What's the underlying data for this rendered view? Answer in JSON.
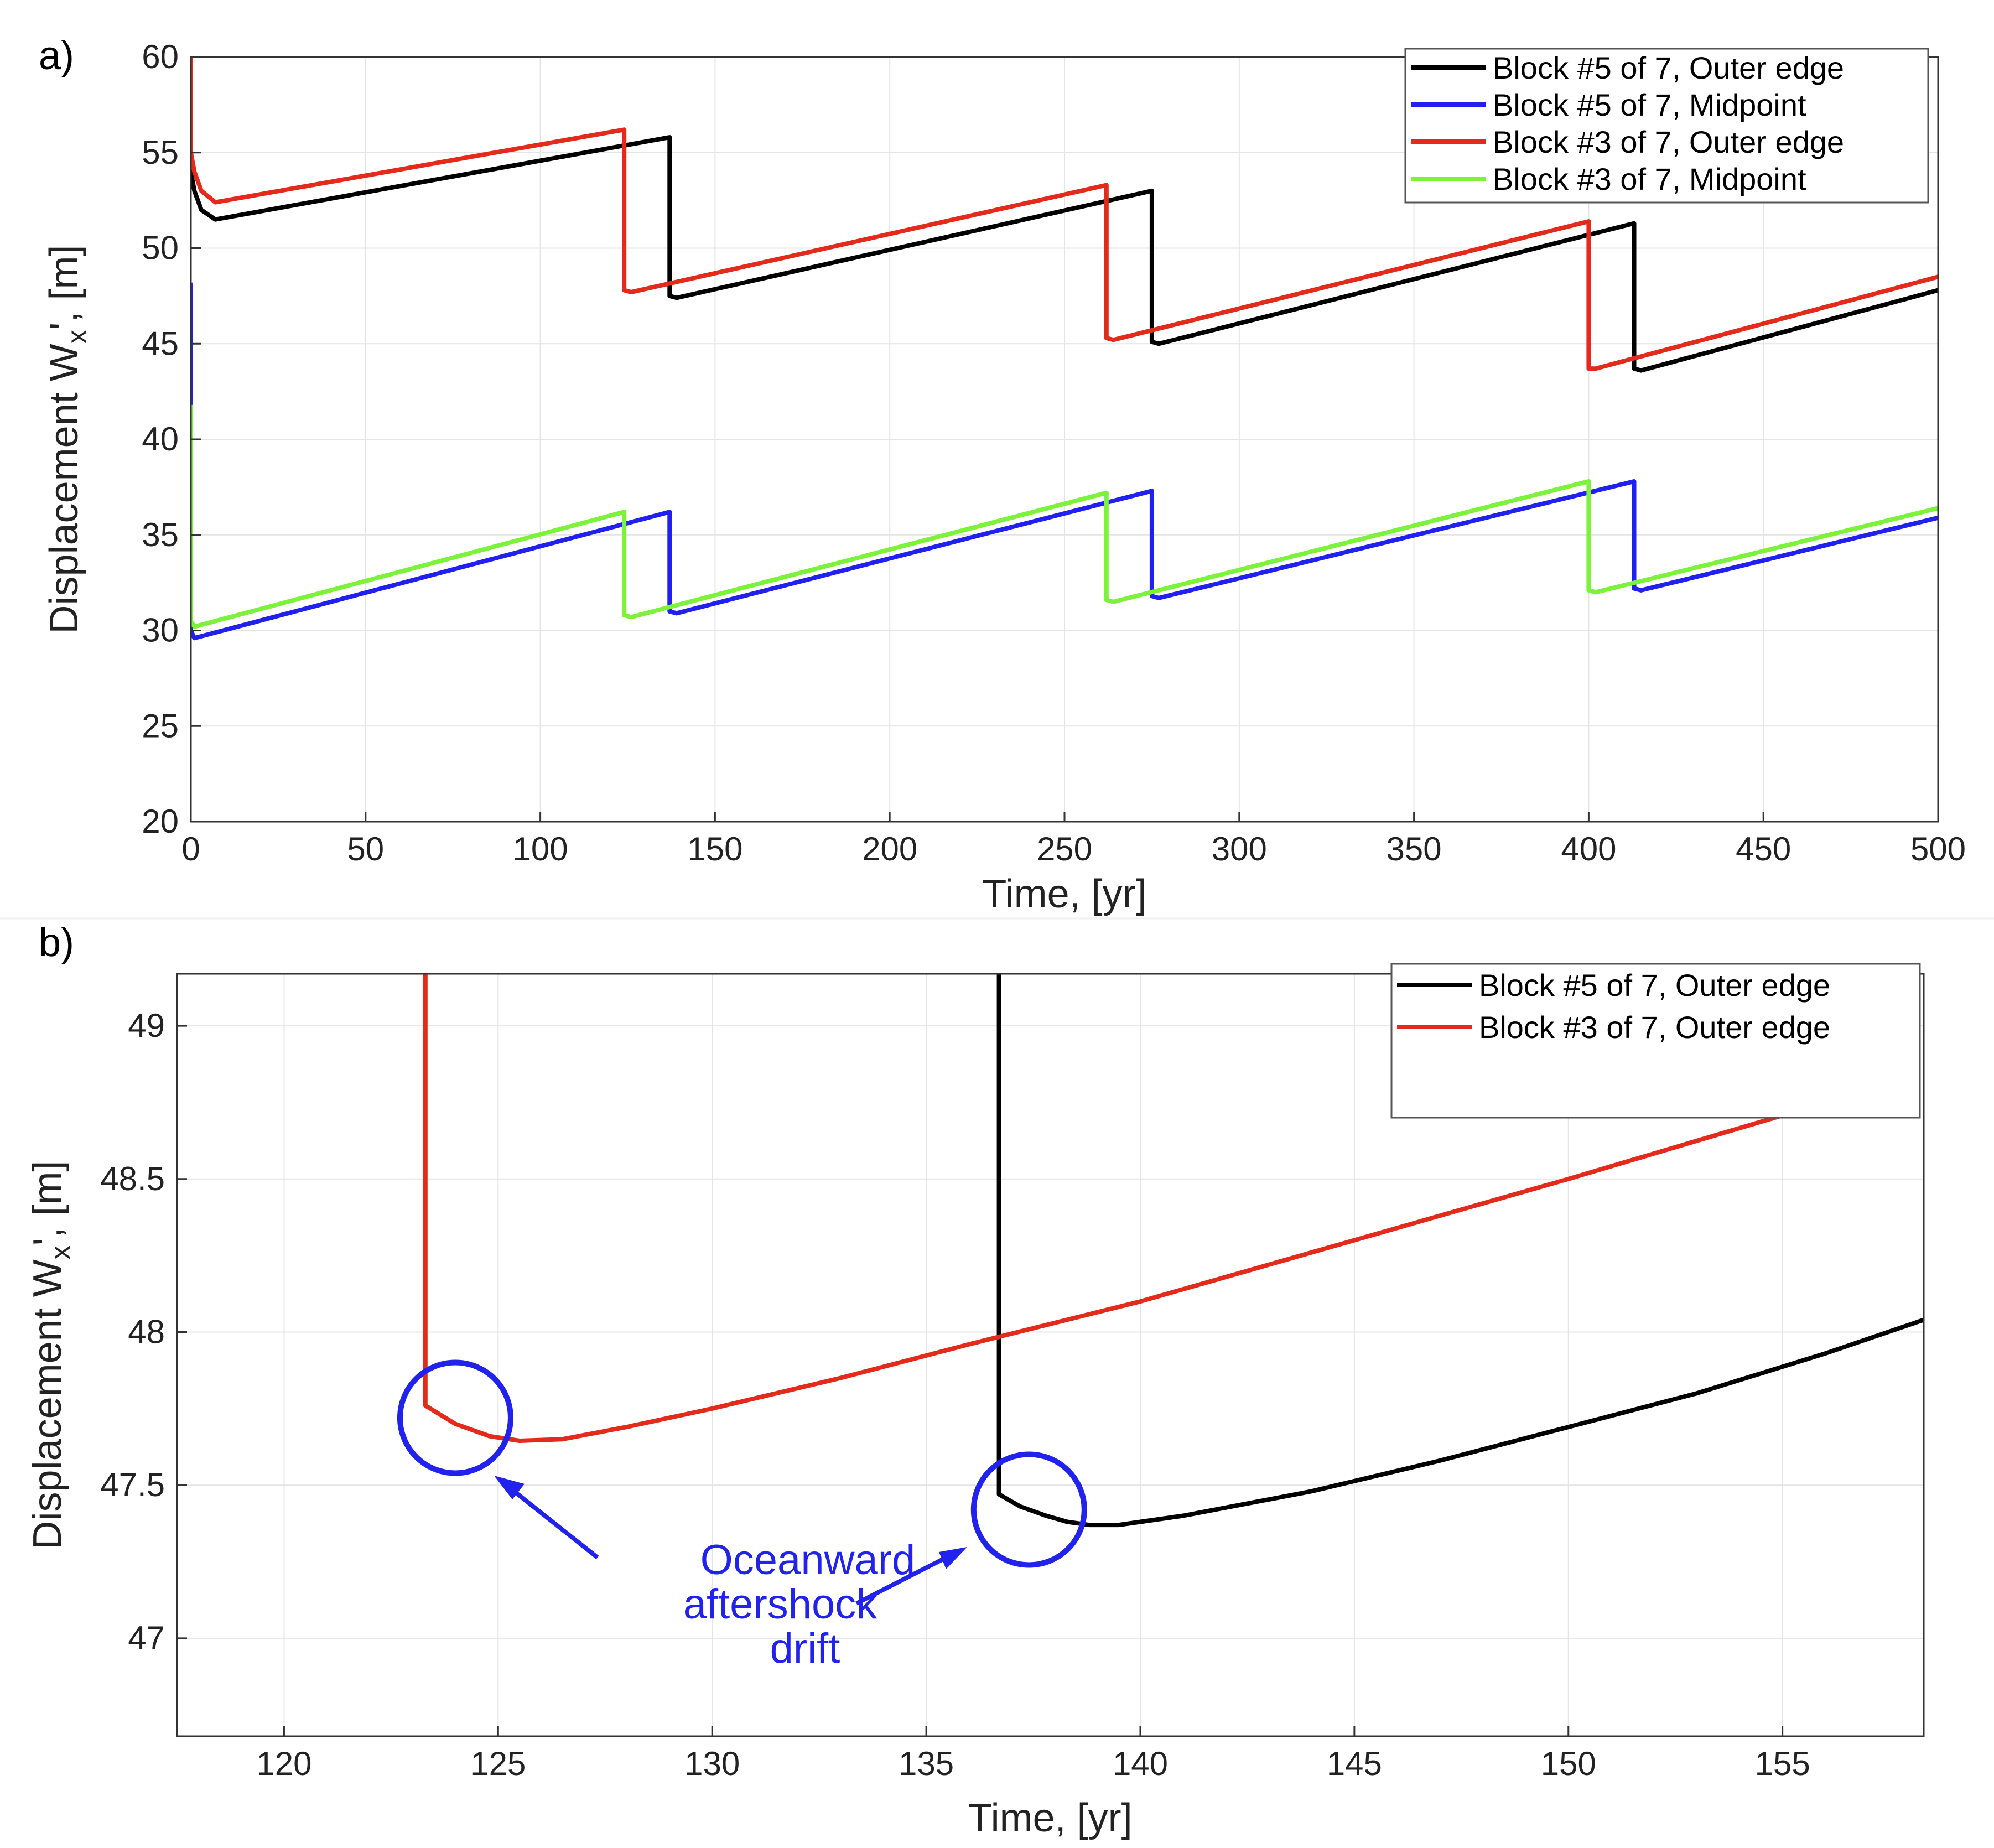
{
  "chart_data": [
    {
      "panel": "a)",
      "type": "line",
      "xlabel": "Time, [yr]",
      "ylabel_main": "Displacement W",
      "ylabel_sub": "x",
      "ylabel_rest": "', [m]",
      "xlim": [
        0,
        500
      ],
      "ylim": [
        20,
        60
      ],
      "xticks": [
        0,
        50,
        100,
        150,
        200,
        250,
        300,
        350,
        400,
        450,
        500
      ],
      "yticks": [
        20,
        25,
        30,
        35,
        40,
        45,
        50,
        55,
        60
      ],
      "legend_position": "top-right",
      "series": [
        {
          "name": "Block #5 of 7, Outer edge",
          "color": "#000000",
          "x": [
            0,
            0,
            1,
            3,
            7,
            137,
            137,
            139,
            275,
            275,
            277,
            413,
            413,
            415,
            500
          ],
          "y": [
            55,
            54,
            53,
            52,
            51.5,
            55.8,
            47.5,
            47.4,
            53,
            45.1,
            45,
            51.3,
            43.7,
            43.6,
            47.8
          ]
        },
        {
          "name": "Block #5 of 7, Midpoint",
          "color": "#2020f0",
          "x": [
            0,
            0,
            1,
            137,
            137,
            139,
            275,
            275,
            277,
            413,
            413,
            415,
            500
          ],
          "y": [
            48.2,
            30,
            29.6,
            36.2,
            31,
            30.9,
            37.3,
            31.8,
            31.7,
            37.8,
            32.2,
            32.1,
            35.9
          ]
        },
        {
          "name": "Block #3 of 7, Outer edge",
          "color": "#e42a1a",
          "x": [
            0,
            0,
            1,
            3,
            7,
            124,
            124,
            126,
            262,
            262,
            264,
            400,
            400,
            402,
            500
          ],
          "y": [
            60,
            55,
            54,
            53,
            52.4,
            56.2,
            47.8,
            47.7,
            53.3,
            45.3,
            45.2,
            51.4,
            43.7,
            43.7,
            48.5
          ]
        },
        {
          "name": "Block #3 of 7, Midpoint",
          "color": "#7cf23a",
          "x": [
            0,
            0,
            1,
            124,
            124,
            126,
            262,
            262,
            264,
            400,
            400,
            402,
            500
          ],
          "y": [
            41.8,
            30.5,
            30.2,
            36.2,
            30.8,
            30.7,
            37.2,
            31.6,
            31.5,
            37.8,
            32.1,
            32,
            36.4
          ]
        }
      ]
    },
    {
      "panel": "b)",
      "type": "line",
      "xlabel": "Time, [yr]",
      "ylabel_main": "Displacement W",
      "ylabel_sub": "x",
      "ylabel_rest": "', [m]",
      "xlim": [
        117.5,
        158.3
      ],
      "ylim": [
        46.68,
        49.17
      ],
      "xticks": [
        120,
        125,
        130,
        135,
        140,
        145,
        150,
        155
      ],
      "yticks": [
        47,
        47.5,
        48,
        48.5,
        49
      ],
      "ytick_labels": [
        "47",
        "47.5",
        "48",
        "48.5",
        "49"
      ],
      "legend_position": "top-right",
      "series": [
        {
          "name": "Block #5 of 7, Outer edge",
          "color": "#000000",
          "x": [
            136.7,
            136.7,
            137.2,
            137.8,
            138.3,
            138.8,
            139.5,
            141,
            144,
            147,
            150,
            153,
            156,
            158.3
          ],
          "y": [
            49.17,
            47.47,
            47.43,
            47.4,
            47.38,
            47.37,
            47.37,
            47.4,
            47.48,
            47.58,
            47.69,
            47.8,
            47.93,
            48.04
          ]
        },
        {
          "name": "Block #3 of 7, Outer edge",
          "color": "#e42a1a",
          "x": [
            123.3,
            123.3,
            124,
            124.8,
            125.5,
            126.5,
            128,
            130,
            133,
            136,
            140,
            145,
            150,
            155.3
          ],
          "y": [
            49.17,
            47.76,
            47.7,
            47.66,
            47.645,
            47.65,
            47.69,
            47.75,
            47.85,
            47.96,
            48.1,
            48.3,
            48.5,
            48.72
          ]
        }
      ],
      "annotation": {
        "lines": [
          "Oceanward",
          "aftershock",
          "drift"
        ],
        "circle_centers": [
          [
            124,
            47.72
          ],
          [
            137.4,
            47.42
          ]
        ],
        "circle_color": "#2222ee"
      }
    }
  ]
}
